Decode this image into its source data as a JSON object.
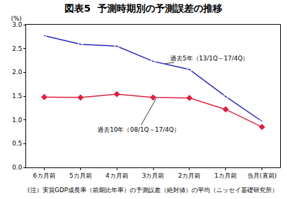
{
  "chart_data": {
    "type": "line",
    "title": "図表5  予測時期別の予測誤差の推移",
    "y_label": "(%)",
    "note": "(注）実質GDP成長率（前期比年率）の予測誤差（絶対値）の平均（ニッセイ基礎研究所）",
    "categories": [
      "6カ月前",
      "5カ月前",
      "4カ月前",
      "3カ月前",
      "2カ月前",
      "1カ月前",
      "当月(直前)"
    ],
    "series": [
      {
        "name": "過去5年（13/1Q～17/4Q）",
        "color": "#2222bb",
        "marker": "circle-open",
        "line_style": "solid",
        "values": [
          2.77,
          2.59,
          2.55,
          2.23,
          2.06,
          1.49,
          0.97
        ]
      },
      {
        "name": "過去10年（08/1Q～17/4Q）",
        "color": "#dd1f3f",
        "marker": "diamond",
        "line_style": "solid",
        "values": [
          1.48,
          1.47,
          1.54,
          1.47,
          1.46,
          1.22,
          0.85
        ]
      }
    ],
    "ylim": [
      0,
      3
    ],
    "yticks": [
      {
        "value": 0,
        "label": "0.0"
      },
      0.5,
      {
        "value": 1,
        "label": "1.0"
      },
      1.5,
      {
        "value": 2,
        "label": "2.0"
      },
      2.5,
      {
        "value": 3,
        "label": "3.0"
      }
    ],
    "grid": false
  }
}
